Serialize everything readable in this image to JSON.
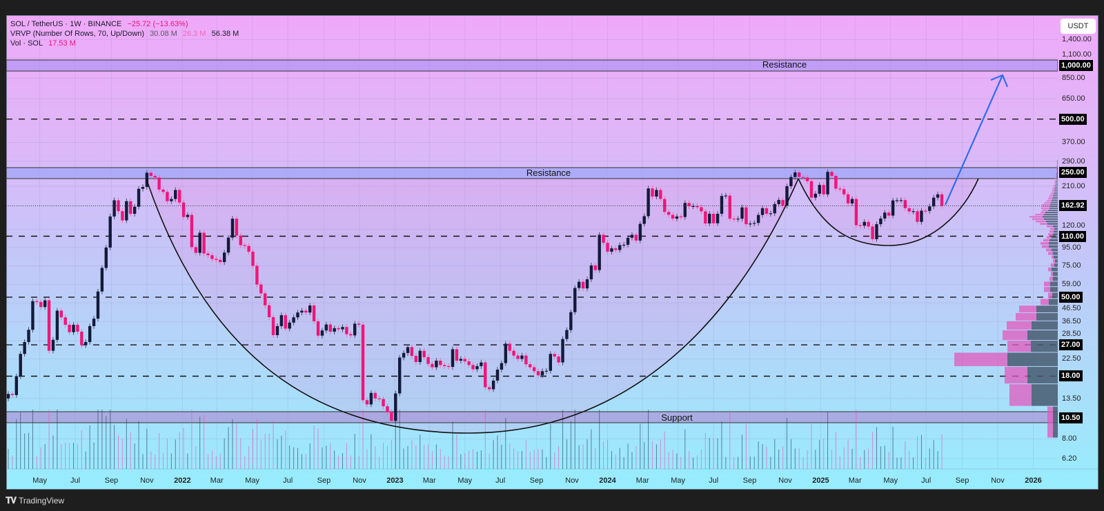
{
  "legend": {
    "symbol": "SOL / TetherUS · 1W · BINANCE",
    "change": "−25.72 (−13.63%)",
    "vrvp_label": "VRVP (Number Of Rows, 70, Up/Down)",
    "vrvp_up": "30.08 M",
    "vrvp_down": "26.3 M",
    "vrvp_total": "56.38 M",
    "vol_label": "Vol · SOL",
    "vol_value": "17.53 M"
  },
  "currency_button": "USDT",
  "annotations": {
    "resistance_upper": "Resistance",
    "resistance_lower": "Resistance",
    "support": "Support"
  },
  "branding": "TradingView",
  "colors": {
    "up": "#131a3a",
    "down": "#f0157a",
    "arrow": "#2f6cf0"
  },
  "chart_data": {
    "type": "candlestick",
    "symbol": "SOL/USDT",
    "interval": "1W",
    "scale": "log",
    "first_week": "2021-03-08",
    "first_open": 13.5,
    "closes": [
      14.3,
      14.1,
      18,
      24,
      28,
      32.8,
      47.5,
      47,
      44,
      48,
      25,
      28.8,
      42,
      38.5,
      35,
      31.8,
      35,
      32,
      26.9,
      28,
      34.4,
      37.9,
      53.8,
      73,
      95,
      142,
      175,
      152,
      135,
      173,
      147,
      161,
      203,
      208,
      250,
      240,
      235,
      201,
      195,
      173,
      178,
      200,
      170,
      141,
      145,
      95.5,
      88.7,
      115,
      88,
      86,
      82,
      81,
      78.7,
      89,
      108,
      138,
      111,
      98,
      97,
      90,
      75,
      58.9,
      52.5,
      45,
      38.6,
      30.6,
      34.4,
      39.6,
      33.3,
      36,
      38.5,
      41,
      42,
      41,
      44.9,
      36.6,
      30.4,
      32.5,
      35.1,
      32,
      33.5,
      33,
      34,
      31,
      30.5,
      35.5,
      35,
      13.2,
      12.5,
      14.5,
      13.5,
      13.4,
      12.2,
      11.3,
      10.1,
      14.4,
      22.9,
      24.3,
      26.2,
      23.4,
      21.6,
      25,
      23,
      21.1,
      20.2,
      22,
      20.8,
      20.5,
      20.3,
      25.5,
      22,
      22.5,
      21.8,
      20.8,
      19.7,
      20.5,
      21.5,
      15.6,
      15.2,
      17,
      19.6,
      21.3,
      27.4,
      25,
      23.5,
      22.5,
      23.5,
      21,
      20.2,
      19.2,
      18.2,
      19.2,
      19.3,
      24,
      23.2,
      21.5,
      29.1,
      32.7,
      41.2,
      56.3,
      61,
      56,
      63,
      75.4,
      71,
      112,
      101,
      90,
      94,
      92,
      98,
      98.5,
      107.8,
      112,
      104,
      129,
      142.5,
      204,
      183.6,
      200,
      178,
      150.7,
      145,
      138,
      142,
      141,
      169,
      162,
      162.5,
      160,
      151.7,
      129.7,
      147,
      130,
      147,
      185,
      186,
      138,
      137,
      138,
      159.6,
      128.5,
      129.5,
      130.6,
      144.8,
      158,
      146.9,
      147.9,
      166.6,
      175.8,
      163.2,
      210,
      236.5,
      251,
      236.5,
      235,
      224,
      181,
      190.5,
      213.5,
      189,
      252.7,
      240,
      203.6,
      202,
      189,
      168,
      178,
      126.8,
      126,
      132.4,
      124.7,
      105.9,
      128.5,
      138.3,
      149.3,
      143.6,
      174.7,
      175,
      175.5,
      158,
      151.4,
      152,
      132.4,
      153,
      152.5,
      161.8,
      181,
      189,
      162.92
    ],
    "last_price": "162.92",
    "dashed_levels": [
      500,
      110,
      50,
      27,
      18
    ],
    "bands": [
      {
        "name": "resistance_upper",
        "low": 931,
        "high": 1074
      },
      {
        "name": "resistance_lower",
        "low": 231.7,
        "high": 267
      },
      {
        "name": "support",
        "low": 9.86,
        "high": 11.37
      }
    ],
    "price_axis": [
      {
        "v": 1400,
        "t": "1,400.00"
      },
      {
        "v": 1100,
        "t": "1,100.00"
      },
      {
        "v": 850,
        "t": "850.00"
      },
      {
        "v": 650,
        "t": "650.00"
      },
      {
        "v": 370,
        "t": "370.00"
      },
      {
        "v": 290,
        "t": "290.00"
      },
      {
        "v": 210,
        "t": "210.00"
      },
      {
        "v": 120,
        "t": "120.00"
      },
      {
        "v": 95,
        "t": "95.00"
      },
      {
        "v": 75,
        "t": "75.00"
      },
      {
        "v": 59,
        "t": "59.00"
      },
      {
        "v": 46.5,
        "t": "46.50"
      },
      {
        "v": 36.5,
        "t": "36.50"
      },
      {
        "v": 28.5,
        "t": "28.50"
      },
      {
        "v": 22.5,
        "t": "22.50"
      },
      {
        "v": 13.5,
        "t": "13.50"
      },
      {
        "v": 8,
        "t": "8.00"
      },
      {
        "v": 6.2,
        "t": "6.20"
      }
    ],
    "price_boxes": [
      {
        "v": 1000,
        "t": "1,000.00"
      },
      {
        "v": 500,
        "t": "500.00"
      },
      {
        "v": 250,
        "t": "250.00"
      },
      {
        "v": 162.92,
        "t": "162.92"
      },
      {
        "v": 110,
        "t": "110.00"
      },
      {
        "v": 50,
        "t": "50.00"
      },
      {
        "v": 27,
        "t": "27.00"
      },
      {
        "v": 18,
        "t": "18.00"
      },
      {
        "v": 10.5,
        "t": "10.50"
      }
    ],
    "time_axis": [
      {
        "d": "2021-05-01",
        "t": "May"
      },
      {
        "d": "2021-07-01",
        "t": "Jul"
      },
      {
        "d": "2021-09-01",
        "t": "Sep"
      },
      {
        "d": "2021-11-01",
        "t": "Nov"
      },
      {
        "d": "2022-01-01",
        "t": "2022",
        "year": true
      },
      {
        "d": "2022-03-01",
        "t": "Mar"
      },
      {
        "d": "2022-05-01",
        "t": "May"
      },
      {
        "d": "2022-07-01",
        "t": "Jul"
      },
      {
        "d": "2022-09-01",
        "t": "Sep"
      },
      {
        "d": "2022-11-01",
        "t": "Nov"
      },
      {
        "d": "2023-01-01",
        "t": "2023",
        "year": true
      },
      {
        "d": "2023-03-01",
        "t": "Mar"
      },
      {
        "d": "2023-05-01",
        "t": "May"
      },
      {
        "d": "2023-07-01",
        "t": "Jul"
      },
      {
        "d": "2023-09-01",
        "t": "Sep"
      },
      {
        "d": "2023-11-01",
        "t": "Nov"
      },
      {
        "d": "2024-01-01",
        "t": "2024",
        "year": true
      },
      {
        "d": "2024-03-01",
        "t": "Mar"
      },
      {
        "d": "2024-05-01",
        "t": "May"
      },
      {
        "d": "2024-07-01",
        "t": "Jul"
      },
      {
        "d": "2024-09-01",
        "t": "Sep"
      },
      {
        "d": "2024-11-01",
        "t": "Nov"
      },
      {
        "d": "2025-01-01",
        "t": "2025",
        "year": true
      },
      {
        "d": "2025-03-01",
        "t": "Mar"
      },
      {
        "d": "2025-05-01",
        "t": "May"
      },
      {
        "d": "2025-07-01",
        "t": "Jul"
      },
      {
        "d": "2025-09-01",
        "t": "Sep"
      },
      {
        "d": "2025-11-01",
        "t": "Nov"
      },
      {
        "d": "2026-01-01",
        "t": "2026",
        "year": true
      }
    ],
    "vrvp": {
      "rows": 70,
      "min_price": 8.1,
      "row_size": 4.1,
      "up_down": [
        [
          7,
          8
        ],
        [
          38,
          32
        ],
        [
          44,
          33
        ],
        [
          73,
          77
        ],
        [
          39,
          34
        ],
        [
          44,
          36
        ],
        [
          38,
          36
        ],
        [
          31,
          30
        ],
        [
          31,
          25
        ],
        [
          13,
          12
        ],
        [
          8,
          6
        ],
        [
          11,
          9
        ],
        [
          11,
          9
        ],
        [
          7,
          5
        ],
        [
          7,
          3
        ],
        [
          9,
          5
        ],
        [
          5,
          5
        ],
        [
          4,
          3
        ],
        [
          6,
          3
        ],
        [
          7,
          7
        ],
        [
          9,
          8
        ],
        [
          13,
          10
        ],
        [
          13,
          12
        ],
        [
          12,
          9
        ],
        [
          9,
          7
        ],
        [
          7,
          7
        ],
        [
          6,
          6
        ],
        [
          5,
          6
        ],
        [
          7,
          9
        ],
        [
          15,
          11
        ],
        [
          17,
          15
        ],
        [
          20,
          17
        ],
        [
          22,
          19
        ],
        [
          20,
          13
        ],
        [
          18,
          7
        ],
        [
          14,
          9
        ],
        [
          12,
          12
        ],
        [
          12,
          12
        ],
        [
          11,
          12
        ],
        [
          10,
          9
        ],
        [
          9,
          7
        ],
        [
          8,
          6
        ],
        [
          7,
          6
        ],
        [
          7,
          5
        ],
        [
          6,
          4
        ],
        [
          5,
          4
        ],
        [
          5,
          3
        ],
        [
          5,
          3
        ],
        [
          4,
          3
        ],
        [
          4,
          3
        ],
        [
          3,
          2
        ],
        [
          3,
          2
        ],
        [
          3,
          2
        ],
        [
          2,
          2
        ],
        [
          2,
          2
        ],
        [
          2,
          1
        ],
        [
          2,
          1
        ],
        [
          2,
          1
        ],
        [
          2,
          1
        ],
        [
          1,
          1
        ],
        [
          1,
          1
        ],
        [
          1,
          1
        ],
        [
          1,
          1
        ],
        [
          1,
          1
        ],
        [
          1,
          1
        ],
        [
          1,
          0
        ],
        [
          1,
          0
        ],
        [
          1,
          0
        ],
        [
          1,
          0
        ],
        [
          1,
          0
        ]
      ]
    }
  }
}
